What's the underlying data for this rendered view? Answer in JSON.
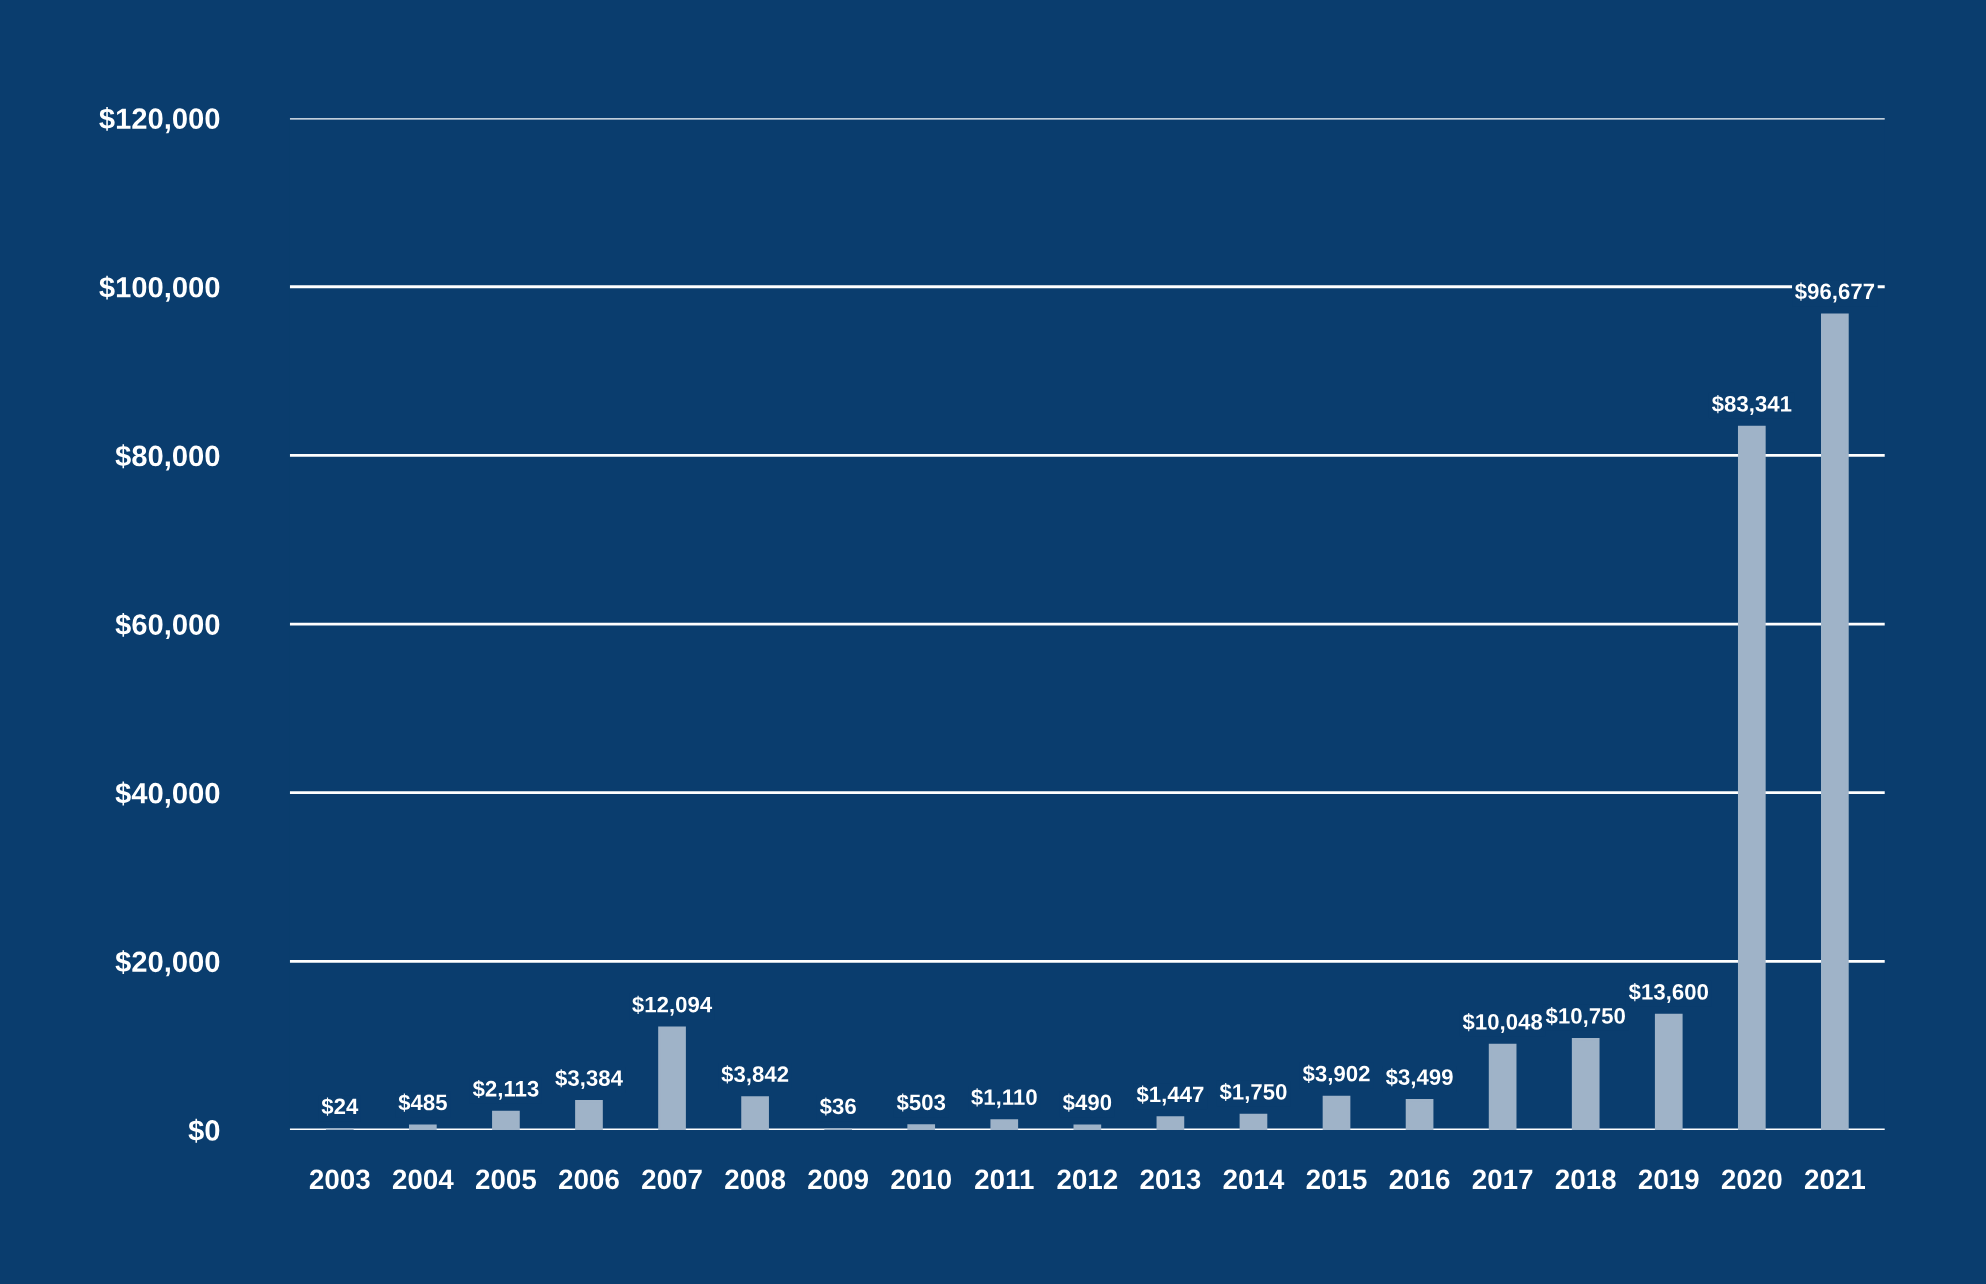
{
  "chart_data": {
    "type": "bar",
    "categories": [
      "2003",
      "2004",
      "2005",
      "2006",
      "2007",
      "2008",
      "2009",
      "2010",
      "2011",
      "2012",
      "2013",
      "2014",
      "2015",
      "2016",
      "2017",
      "2018",
      "2019",
      "2020",
      "2021"
    ],
    "values": [
      24,
      485,
      2113,
      3384,
      12094,
      3842,
      36,
      503,
      1110,
      490,
      1447,
      1750,
      3902,
      3499,
      10048,
      10750,
      13600,
      83341,
      96677
    ],
    "value_labels": [
      "$24",
      "$485",
      "$2,113",
      "$3,384",
      "$12,094",
      "$3,842",
      "$36",
      "$503",
      "$1,110",
      "$490",
      "$1,447",
      "$1,750",
      "$3,902",
      "$3,499",
      "$10,048",
      "$10,750",
      "$13,600",
      "$83,341",
      "$96,677"
    ],
    "color": "#9fb3c8",
    "ylim": [
      0,
      120000
    ],
    "yticks": [
      {
        "value": 0,
        "label": "$0"
      },
      {
        "value": 20000,
        "label": "$20,000"
      },
      {
        "value": 40000,
        "label": "$40,000"
      },
      {
        "value": 60000,
        "label": "$60,000"
      },
      {
        "value": 80000,
        "label": "$80,000"
      },
      {
        "value": 100000,
        "label": "$100,000"
      },
      {
        "value": 120000,
        "label": "$120,000"
      }
    ],
    "grid": "y"
  }
}
